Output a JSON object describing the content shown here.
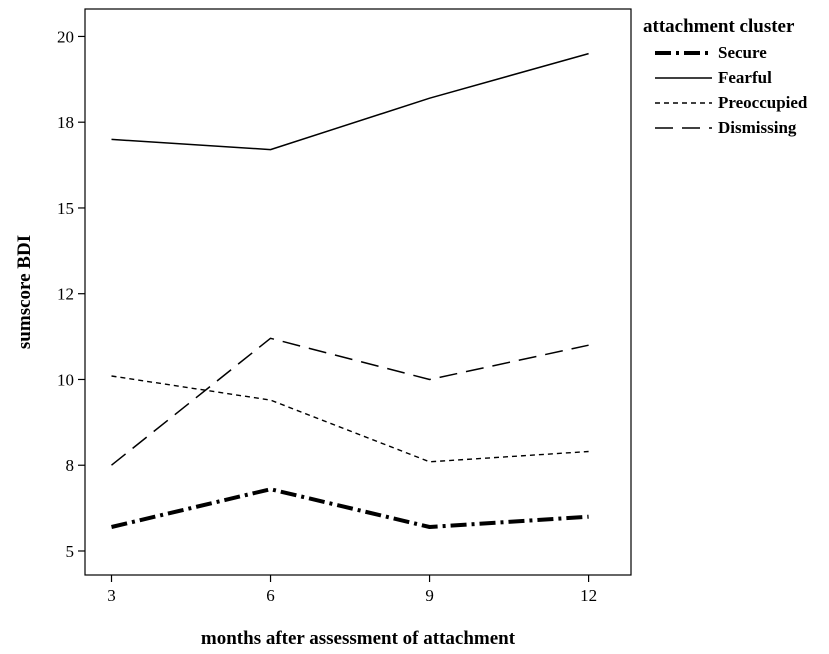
{
  "chart_data": {
    "type": "line",
    "x": [
      3,
      6,
      9,
      12
    ],
    "xlabel": "months after assessment of attachment",
    "ylabel": "sumscore BDI",
    "x_ticks": [
      "3",
      "6",
      "9",
      "12"
    ],
    "y_ticks": [
      "5",
      "8",
      "10",
      "12",
      "15",
      "18",
      "20"
    ],
    "y_tick_values": [
      5,
      7.5,
      10,
      12.5,
      15,
      17.5,
      20
    ],
    "xlim": [
      2.5,
      12.8
    ],
    "ylim": [
      4.3,
      20.8
    ],
    "grid": false,
    "legend": {
      "title": "attachment cluster",
      "placement": "outside-top-right"
    },
    "series": [
      {
        "name": "Secure",
        "values": [
          5.7,
          6.8,
          5.7,
          6.0
        ],
        "style": "dash-dot-thick"
      },
      {
        "name": "Fearful",
        "values": [
          17.0,
          16.7,
          18.2,
          19.5
        ],
        "style": "solid"
      },
      {
        "name": "Preoccupied",
        "values": [
          10.1,
          9.4,
          7.6,
          7.9
        ],
        "style": "short-dash"
      },
      {
        "name": "Dismissing",
        "values": [
          7.5,
          11.2,
          10.0,
          11.0
        ],
        "style": "long-dash"
      }
    ],
    "colors": {
      "line": "#000000",
      "background": "#ffffff"
    }
  }
}
